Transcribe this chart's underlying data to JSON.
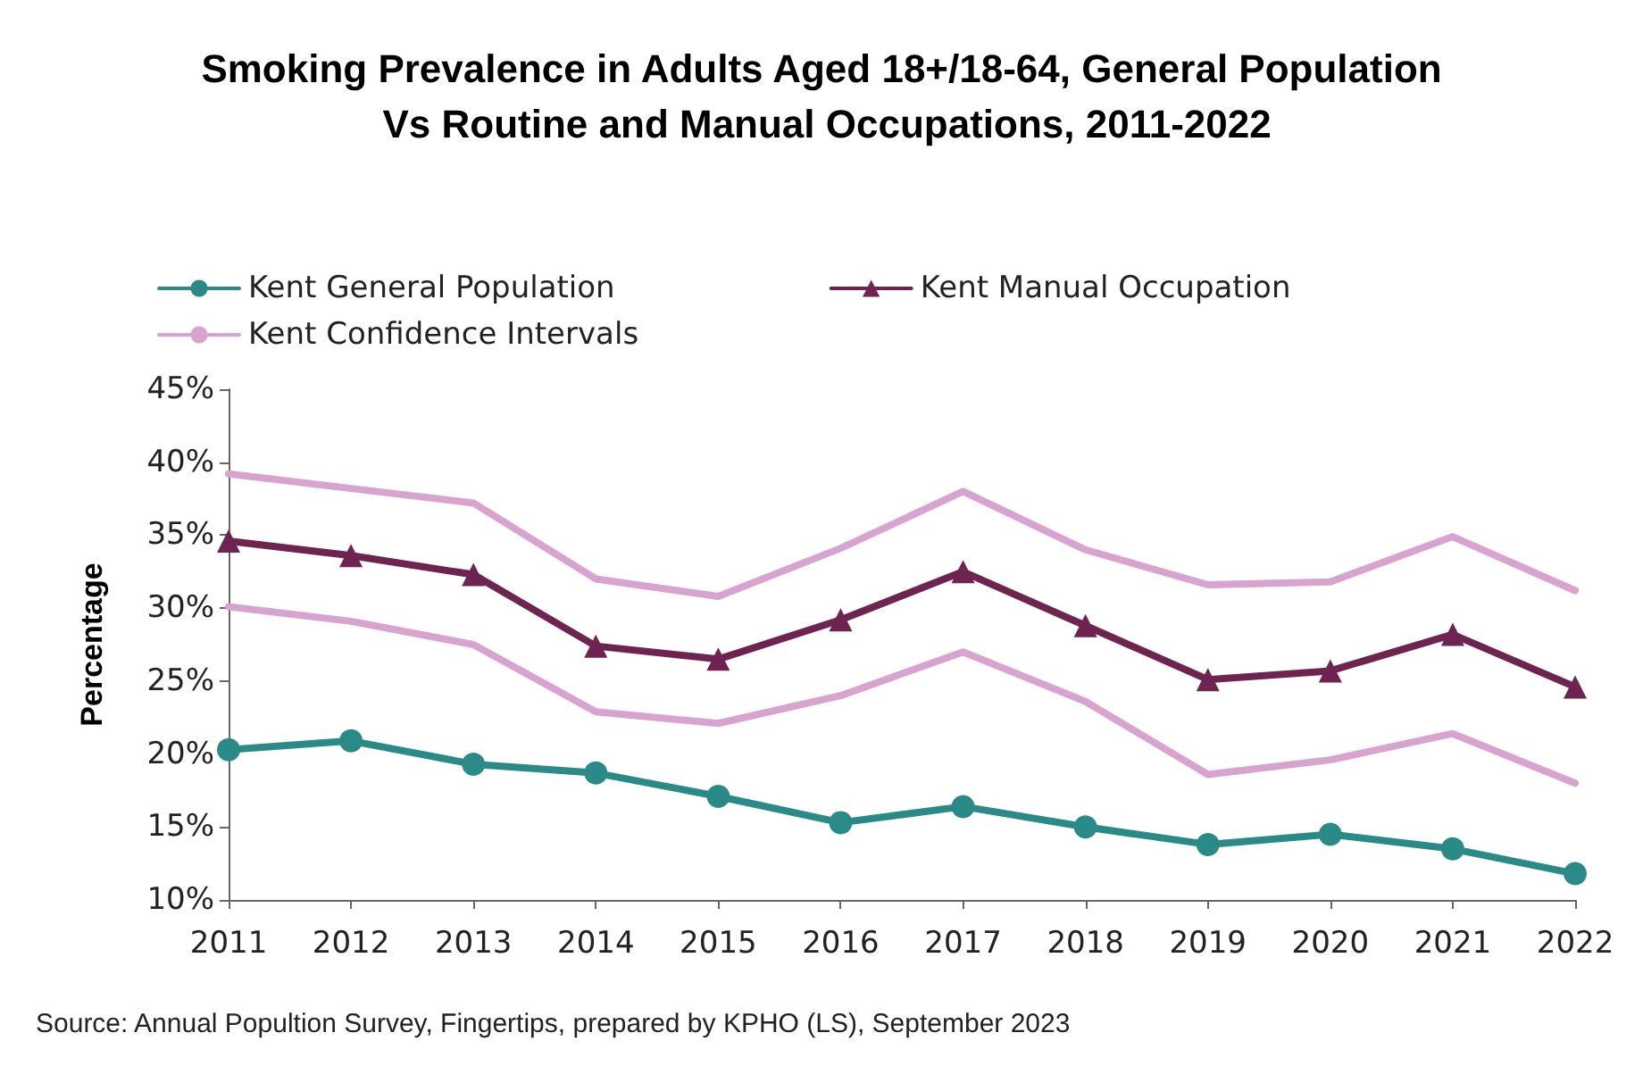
{
  "chart_data": {
    "type": "line",
    "title": "Smoking Prevalence in Adults Aged 18+/18-64, General Population Vs Routine and Manual Occupations, 2011-2022",
    "ylabel": "Percentage",
    "categories": [
      "2011",
      "2012",
      "2013",
      "2014",
      "2015",
      "2016",
      "2017",
      "2018",
      "2019",
      "2020",
      "2021",
      "2022"
    ],
    "series": [
      {
        "name": "Kent General Population",
        "color": "#2a8a87",
        "marker": "circle",
        "values": [
          20.3,
          20.9,
          19.3,
          18.7,
          17.1,
          15.3,
          16.4,
          15.0,
          13.8,
          14.5,
          13.5,
          11.8
        ]
      },
      {
        "name": "Kent Manual Occupation",
        "color": "#6e2350",
        "marker": "triangle",
        "values": [
          34.6,
          33.6,
          32.3,
          27.4,
          26.5,
          29.2,
          32.5,
          28.8,
          25.1,
          25.7,
          28.2,
          24.6
        ]
      },
      {
        "name": "Kent Confidence Intervals",
        "color": "#d9a3cf",
        "marker": "none",
        "values": [
          39.2,
          38.2,
          37.2,
          32.0,
          30.8,
          34.1,
          38.0,
          34.0,
          31.6,
          31.8,
          34.9,
          31.2
        ]
      },
      {
        "color": "#d9a3cf",
        "marker": "none",
        "values": [
          30.1,
          29.1,
          27.5,
          22.9,
          22.1,
          24.0,
          27.0,
          23.6,
          18.6,
          19.6,
          21.4,
          18.0
        ]
      }
    ],
    "ylim": [
      10,
      45
    ],
    "yticks": [
      {
        "value": 10,
        "label": "10%"
      },
      {
        "value": 15,
        "label": "15%"
      },
      {
        "value": 20,
        "label": "20%"
      },
      {
        "value": 25,
        "label": "25%"
      },
      {
        "value": 30,
        "label": "30%"
      },
      {
        "value": 35,
        "label": "35%"
      },
      {
        "value": 40,
        "label": "40%"
      },
      {
        "value": 45,
        "label": "45%"
      }
    ],
    "grid": false,
    "legend": "top",
    "line_style": "solid",
    "annotations": [
      "Source: Annual Popultion Survey, Fingertips, prepared by KPHO (LS), September 2023"
    ]
  }
}
